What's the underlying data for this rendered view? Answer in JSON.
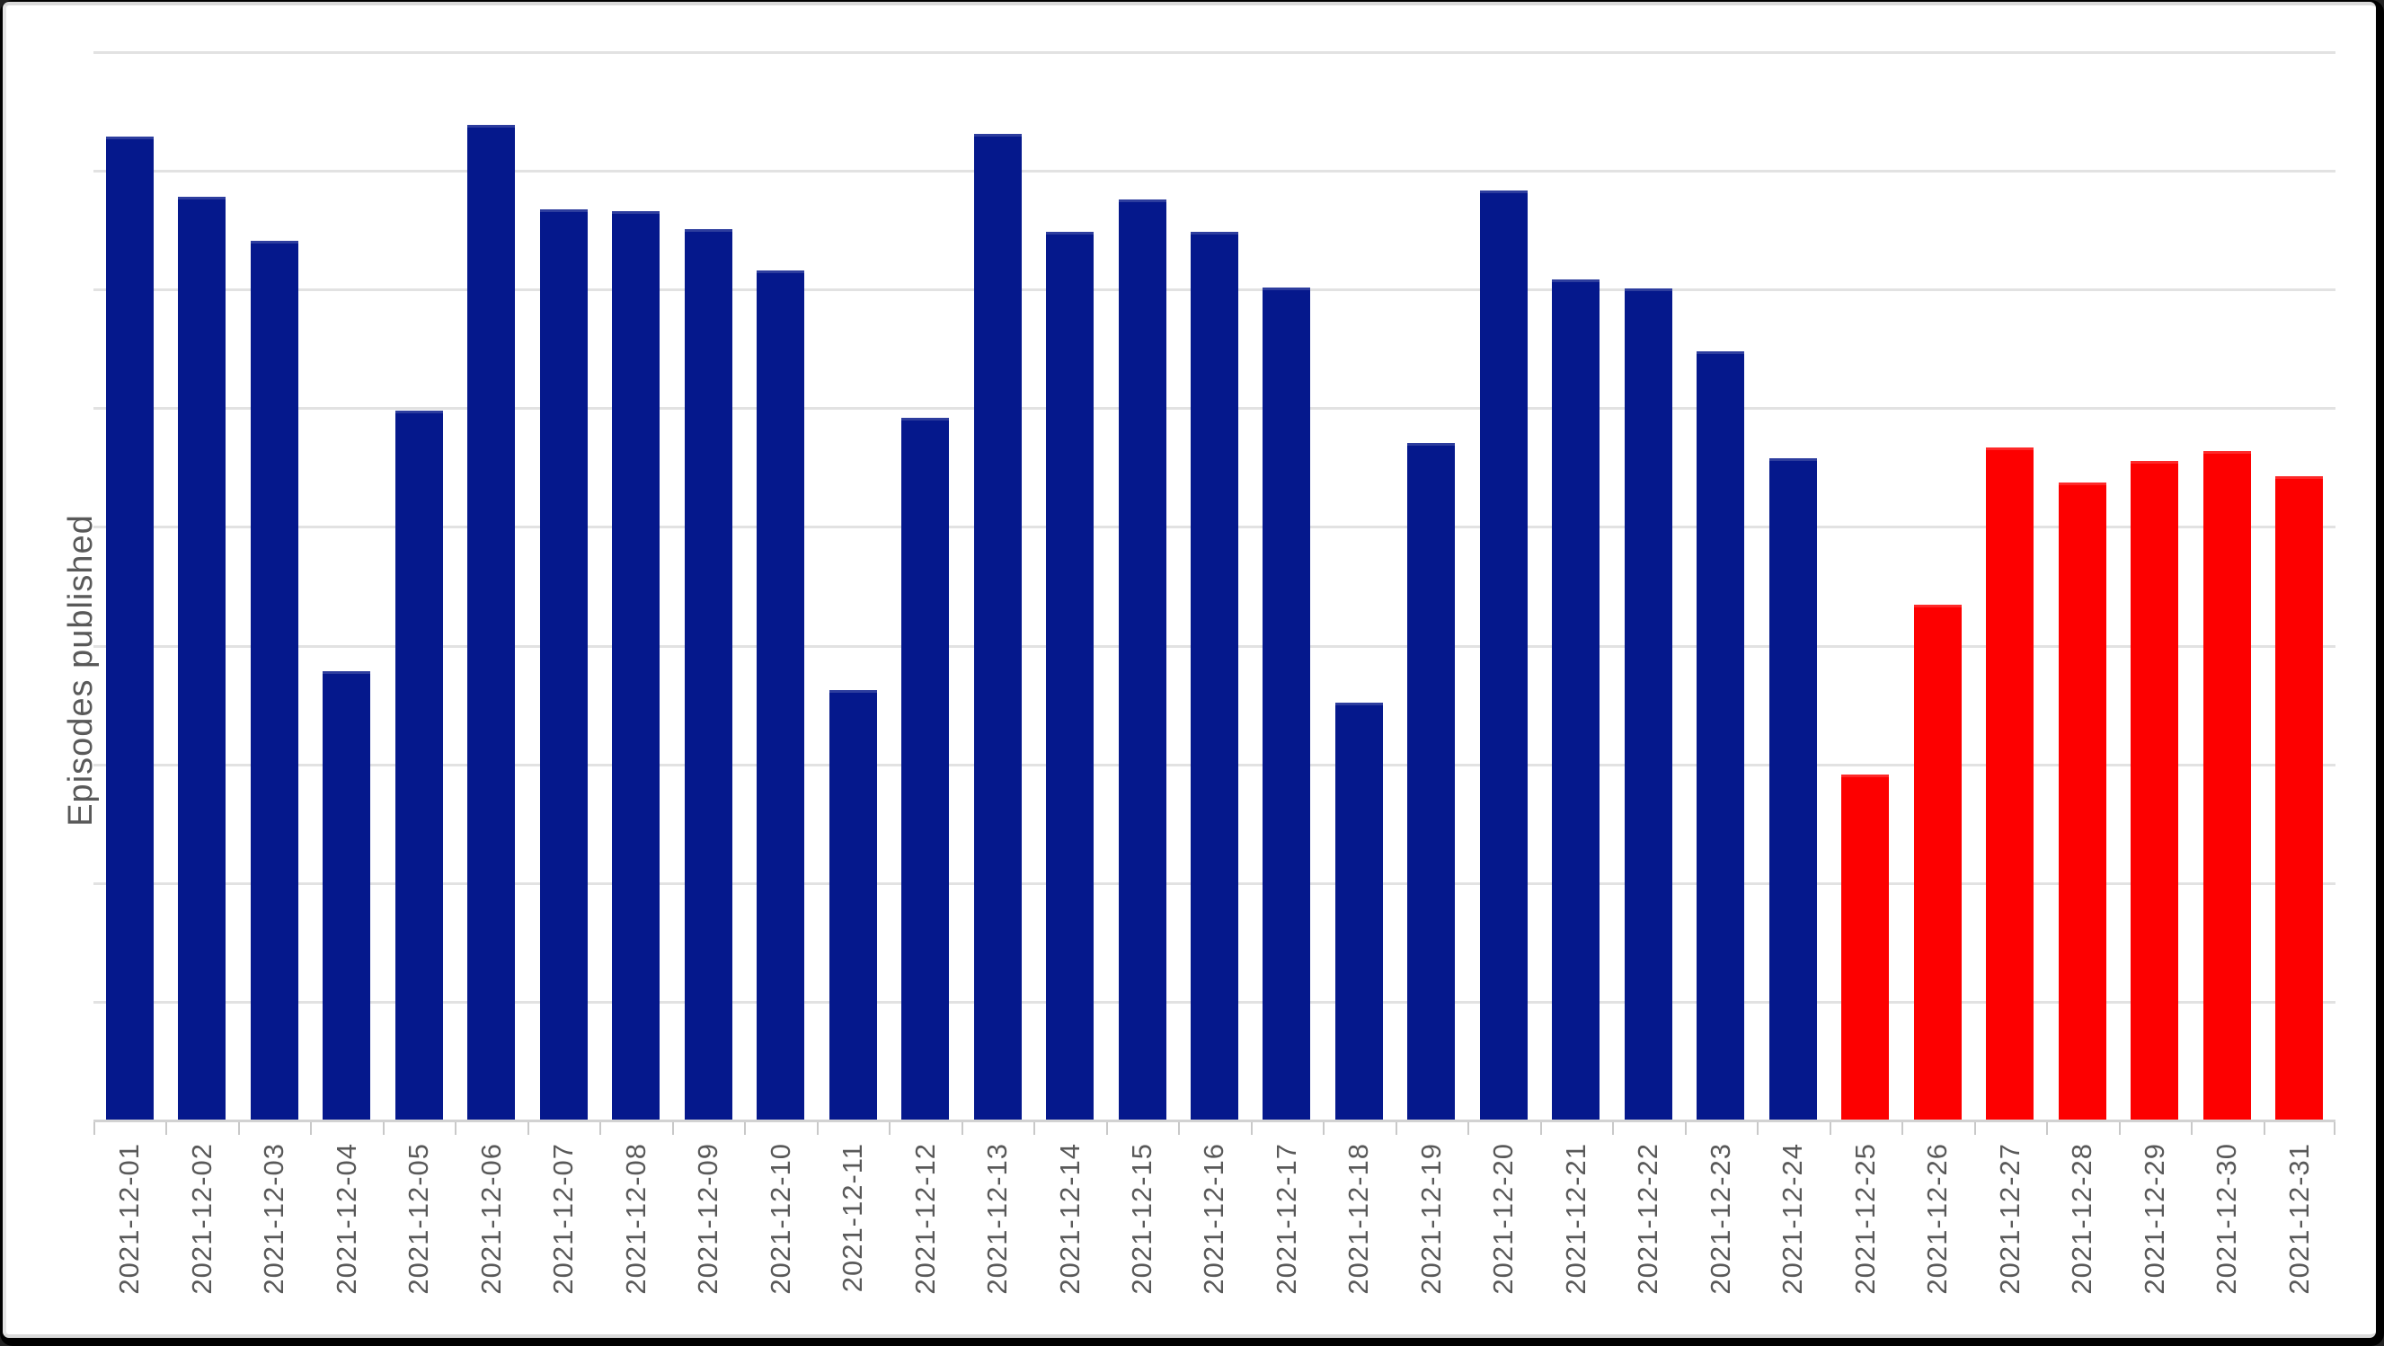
{
  "frame": {
    "outer_border_color": "#000000",
    "inner_frame_color": "#dadada",
    "background": "#ffffff"
  },
  "chart_data": {
    "type": "bar",
    "title": "",
    "xlabel": "",
    "ylabel": "Episodes published",
    "categories": [
      "2021-12-01",
      "2021-12-02",
      "2021-12-03",
      "2021-12-04",
      "2021-12-05",
      "2021-12-06",
      "2021-12-07",
      "2021-12-08",
      "2021-12-09",
      "2021-12-10",
      "2021-12-11",
      "2021-12-12",
      "2021-12-13",
      "2021-12-14",
      "2021-12-15",
      "2021-12-16",
      "2021-12-17",
      "2021-12-18",
      "2021-12-19",
      "2021-12-20",
      "2021-12-21",
      "2021-12-22",
      "2021-12-23",
      "2021-12-24",
      "2021-12-25",
      "2021-12-26",
      "2021-12-27",
      "2021-12-28",
      "2021-12-29",
      "2021-12-30",
      "2021-12-31"
    ],
    "values": [
      8.28,
      7.77,
      7.4,
      3.78,
      5.97,
      8.38,
      7.67,
      7.65,
      7.5,
      7.15,
      3.62,
      5.91,
      8.3,
      7.48,
      7.75,
      7.48,
      7.01,
      3.51,
      5.7,
      7.83,
      7.08,
      7.0,
      6.47,
      5.57,
      2.91,
      4.34,
      5.66,
      5.37,
      5.55,
      5.63,
      5.42
    ],
    "bar_color_default": "#05188c",
    "bar_color_highlight": "#fd0000",
    "highlighted_categories": [
      "2021-12-25",
      "2021-12-26",
      "2021-12-27",
      "2021-12-28",
      "2021-12-29",
      "2021-12-30",
      "2021-12-31"
    ],
    "y_axis": {
      "tick_labels_visible": false,
      "max_gridline_value": 9,
      "gridline_count": 9,
      "gridline_color": "#e2e2e2",
      "axis_line_color": "#d2d2d2"
    },
    "x_axis": {
      "tick_color": "#c9c9c9",
      "label_color": "#595959",
      "label_rotation_deg": 90
    },
    "legend": {
      "visible": false
    },
    "grid": {
      "visible": true
    }
  }
}
